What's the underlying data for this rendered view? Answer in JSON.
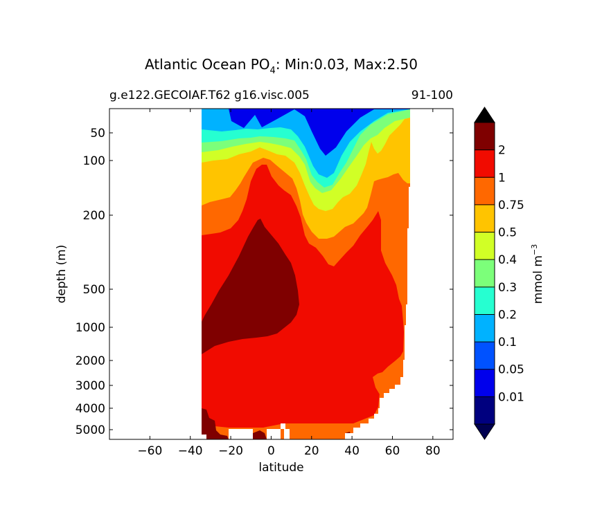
{
  "chart_data": {
    "type": "heatmap",
    "title": {
      "prefix": "Atlantic Ocean PO",
      "subscript": "4",
      "suffix": ": Min:0.03, Max:2.50"
    },
    "subtitle_left": "g.e122.GECOIAF.T62 g16.visc.005",
    "subtitle_right": "91-100",
    "xlabel": "latitude",
    "ylabel": "depth (m)",
    "xlim": [
      -80,
      90
    ],
    "x_ticks": [
      -60,
      -40,
      -20,
      0,
      20,
      40,
      60,
      80
    ],
    "x_tick_labels": [
      "−60",
      "−40",
      "−20",
      "0",
      "20",
      "40",
      "60",
      "80"
    ],
    "y_ticks": [
      50,
      100,
      200,
      500,
      1000,
      2000,
      3000,
      4000,
      5000
    ],
    "y_tick_labels": [
      "50",
      "100",
      "200",
      "500",
      "1000",
      "2000",
      "3000",
      "4000",
      "5000"
    ],
    "colorbar": {
      "label_main": "mmol m",
      "label_exp": "−3",
      "levels": [
        "0.01",
        "0.05",
        "0.1",
        "0.2",
        "0.3",
        "0.4",
        "0.5",
        "0.75",
        "1",
        "2"
      ],
      "colors": [
        "#00007f",
        "#0000ec",
        "#0052ff",
        "#00b2ff",
        "#26ffd1",
        "#7cff7a",
        "#d1ff26",
        "#ffc400",
        "#ff6800",
        "#f10b00",
        "#7f0000"
      ],
      "extend": "both",
      "under_color": "#000050",
      "over_color": "#000000"
    }
  }
}
